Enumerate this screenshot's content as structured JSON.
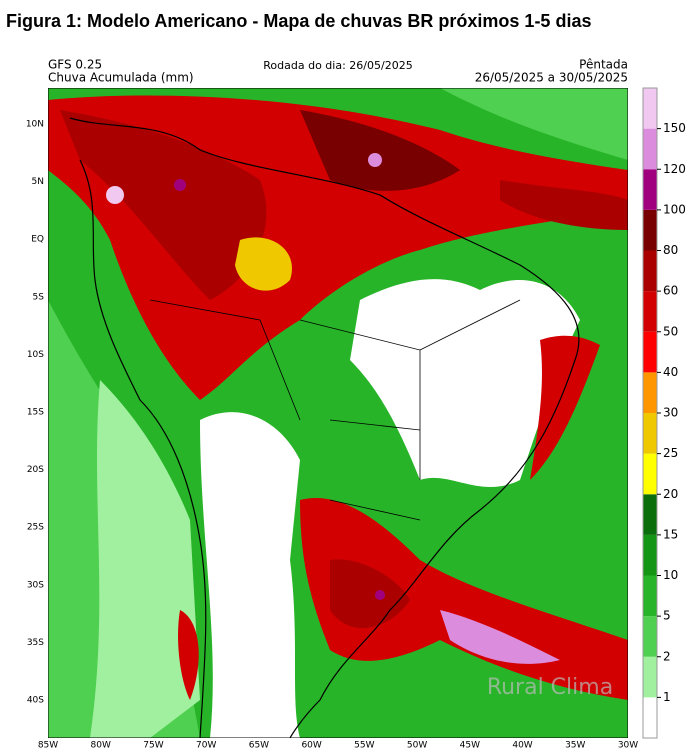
{
  "title": "Figura 1: Modelo Americano - Mapa de chuvas BR próximos 1-5 dias",
  "header": {
    "model": "GFS 0.25",
    "variable": "Chuva Acumulada (mm)",
    "run": "Rodada do dia: 26/05/2025",
    "period_name": "Pêntada",
    "period": "26/05/2025 a 30/05/2025"
  },
  "map": {
    "lat_labels": [
      "10N",
      "5N",
      "EQ",
      "5S",
      "10S",
      "15S",
      "20S",
      "25S",
      "30S",
      "35S",
      "40S"
    ],
    "lon_labels": [
      "85W",
      "80W",
      "75W",
      "70W",
      "65W",
      "60W",
      "55W",
      "50W",
      "45W",
      "40W",
      "35W",
      "30W"
    ],
    "watermark": "Rural Clima"
  },
  "colorbar": {
    "levels": [
      1,
      2,
      5,
      10,
      15,
      20,
      25,
      30,
      40,
      50,
      60,
      80,
      100,
      120,
      150
    ],
    "colors": [
      "#ffffff",
      "#a0f0a0",
      "#50d050",
      "#28b428",
      "#149614",
      "#0a6e0a",
      "#ffff00",
      "#f0c800",
      "#ff9600",
      "#ff0000",
      "#d20000",
      "#aa0000",
      "#780000",
      "#a0007e",
      "#dc8cdc",
      "#f0c8f0"
    ]
  }
}
